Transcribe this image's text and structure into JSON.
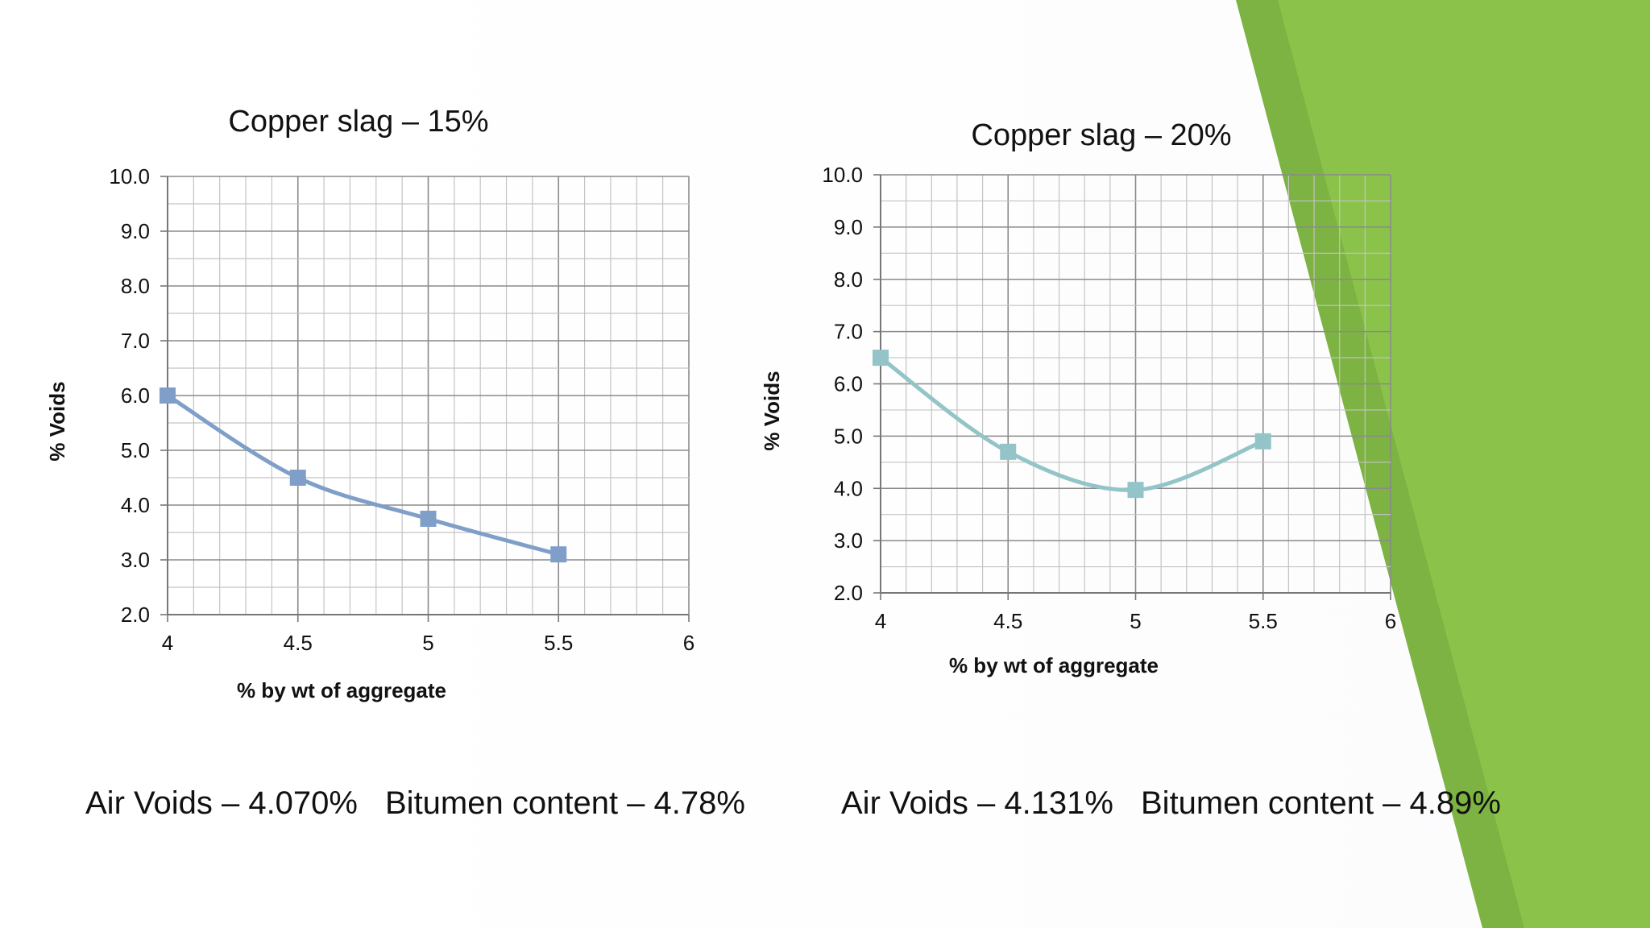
{
  "theme": {
    "accent_dark": "#7cb342",
    "accent_light": "#8bc34a",
    "series_colors": [
      "#7f9fc9",
      "#93c4c7"
    ]
  },
  "chart_data": [
    {
      "type": "line",
      "title": "Copper slag – 15%",
      "xlabel": "% by wt of aggregate",
      "ylabel": "% Voids",
      "xlim": [
        4,
        6
      ],
      "ylim": [
        2.0,
        10.0
      ],
      "xticks": [
        "4",
        "4.5",
        "5",
        "5.5",
        "6"
      ],
      "yticks": [
        "2.0",
        "3.0",
        "4.0",
        "5.0",
        "6.0",
        "7.0",
        "8.0",
        "9.0",
        "10.0"
      ],
      "grid": true,
      "smooth": true,
      "marker": "square",
      "x": [
        4,
        4.5,
        5,
        5.5
      ],
      "series": [
        {
          "values": [
            6.0,
            4.5,
            3.75,
            3.1
          ],
          "color": "#7f9fc9"
        }
      ]
    },
    {
      "type": "line",
      "title": "Copper slag – 20%",
      "xlabel": "% by wt of aggregate",
      "ylabel": "% Voids",
      "xlim": [
        4,
        6
      ],
      "ylim": [
        2.0,
        10.0
      ],
      "xticks": [
        "4",
        "4.5",
        "5",
        "5.5",
        "6"
      ],
      "yticks": [
        "2.0",
        "3.0",
        "4.0",
        "5.0",
        "6.0",
        "7.0",
        "8.0",
        "9.0",
        "10.0"
      ],
      "grid": true,
      "smooth": true,
      "marker": "square",
      "x": [
        4,
        4.5,
        5,
        5.5
      ],
      "series": [
        {
          "values": [
            6.5,
            4.7,
            3.97,
            4.9
          ],
          "color": "#93c4c7"
        }
      ]
    }
  ],
  "summary": {
    "left": {
      "air_voids": "Air Voids – 4.070%",
      "bitumen": "Bitumen content – 4.78%"
    },
    "right": {
      "air_voids": "Air Voids – 4.131%",
      "bitumen": "Bitumen content – 4.89%"
    }
  }
}
